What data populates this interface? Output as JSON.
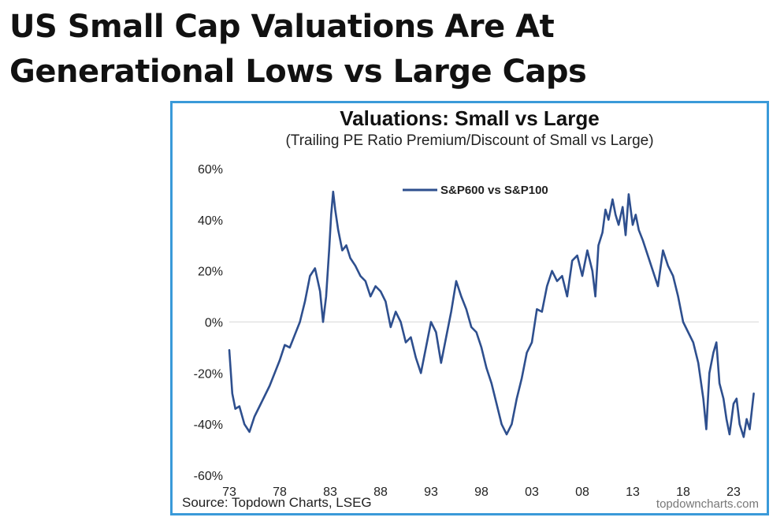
{
  "headline": {
    "line1": "US Small Cap Valuations Are At",
    "line2": "Generational Lows vs Large Caps"
  },
  "colors": {
    "series": "#2e4f8e",
    "frame": "#3a9ad9",
    "zero_line": "#d9d9d9"
  },
  "chart_data": {
    "type": "line",
    "title": "Valuations: Small vs Large",
    "subtitle": "(Trailing PE Ratio Premium/Discount of Small vs Large)",
    "source": "Source: Topdown Charts, LSEG",
    "watermark": "topdowncharts.com",
    "xlabel": "",
    "ylabel": "",
    "xlim": [
      1973,
      2025.5
    ],
    "ylim": [
      -60,
      60
    ],
    "x_ticks": [
      1973,
      1978,
      1983,
      1988,
      1993,
      1998,
      2003,
      2008,
      2013,
      2018,
      2023
    ],
    "x_tick_labels": [
      "73",
      "78",
      "83",
      "88",
      "93",
      "98",
      "03",
      "08",
      "13",
      "18",
      "23"
    ],
    "y_ticks": [
      60,
      40,
      20,
      0,
      -20,
      -40,
      -60
    ],
    "y_tick_labels": [
      "60%",
      "40%",
      "20%",
      "0%",
      "-20%",
      "-40%",
      "-60%"
    ],
    "legend": {
      "position": "top-center"
    },
    "series": [
      {
        "name": "S&P600 vs S&P100",
        "x": [
          1973.0,
          1973.3,
          1973.6,
          1974.0,
          1974.5,
          1975.0,
          1975.5,
          1976.0,
          1976.5,
          1977.0,
          1977.5,
          1978.0,
          1978.5,
          1979.0,
          1979.5,
          1980.0,
          1980.5,
          1981.0,
          1981.5,
          1982.0,
          1982.3,
          1982.6,
          1982.9,
          1983.1,
          1983.3,
          1983.5,
          1983.8,
          1984.2,
          1984.6,
          1985.0,
          1985.5,
          1986.0,
          1986.5,
          1987.0,
          1987.5,
          1988.0,
          1988.5,
          1989.0,
          1989.5,
          1990.0,
          1990.5,
          1991.0,
          1991.5,
          1992.0,
          1992.5,
          1993.0,
          1993.5,
          1994.0,
          1994.5,
          1995.0,
          1995.5,
          1996.0,
          1996.5,
          1997.0,
          1997.5,
          1998.0,
          1998.5,
          1999.0,
          1999.5,
          2000.0,
          2000.5,
          2001.0,
          2001.5,
          2002.0,
          2002.5,
          2003.0,
          2003.5,
          2004.0,
          2004.5,
          2005.0,
          2005.5,
          2006.0,
          2006.5,
          2007.0,
          2007.5,
          2008.0,
          2008.5,
          2009.0,
          2009.3,
          2009.6,
          2010.0,
          2010.3,
          2010.6,
          2011.0,
          2011.3,
          2011.6,
          2012.0,
          2012.3,
          2012.6,
          2013.0,
          2013.3,
          2013.6,
          2014.0,
          2014.5,
          2015.0,
          2015.5,
          2016.0,
          2016.5,
          2017.0,
          2017.5,
          2018.0,
          2018.5,
          2019.0,
          2019.5,
          2020.0,
          2020.3,
          2020.6,
          2021.0,
          2021.3,
          2021.6,
          2022.0,
          2022.3,
          2022.6,
          2023.0,
          2023.3,
          2023.6,
          2024.0,
          2024.3,
          2024.6,
          2025.0
        ],
        "values": [
          -11,
          -28,
          -34,
          -33,
          -40,
          -43,
          -37,
          -33,
          -29,
          -25,
          -20,
          -15,
          -9,
          -10,
          -5,
          0,
          8,
          18,
          21,
          12,
          0,
          10,
          28,
          42,
          51,
          44,
          36,
          28,
          30,
          25,
          22,
          18,
          16,
          10,
          14,
          12,
          8,
          -2,
          4,
          0,
          -8,
          -6,
          -14,
          -20,
          -10,
          0,
          -4,
          -16,
          -6,
          4,
          16,
          10,
          5,
          -2,
          -4,
          -10,
          -18,
          -24,
          -32,
          -40,
          -44,
          -40,
          -30,
          -22,
          -12,
          -8,
          5,
          4,
          14,
          20,
          16,
          18,
          10,
          24,
          26,
          18,
          28,
          20,
          10,
          30,
          35,
          44,
          40,
          48,
          42,
          38,
          45,
          34,
          50,
          38,
          42,
          36,
          32,
          26,
          20,
          14,
          28,
          22,
          18,
          10,
          0,
          -4,
          -8,
          -16,
          -30,
          -42,
          -20,
          -12,
          -8,
          -24,
          -30,
          -38,
          -44,
          -32,
          -30,
          -40,
          -45,
          -38,
          -42,
          -28
        ]
      }
    ]
  }
}
